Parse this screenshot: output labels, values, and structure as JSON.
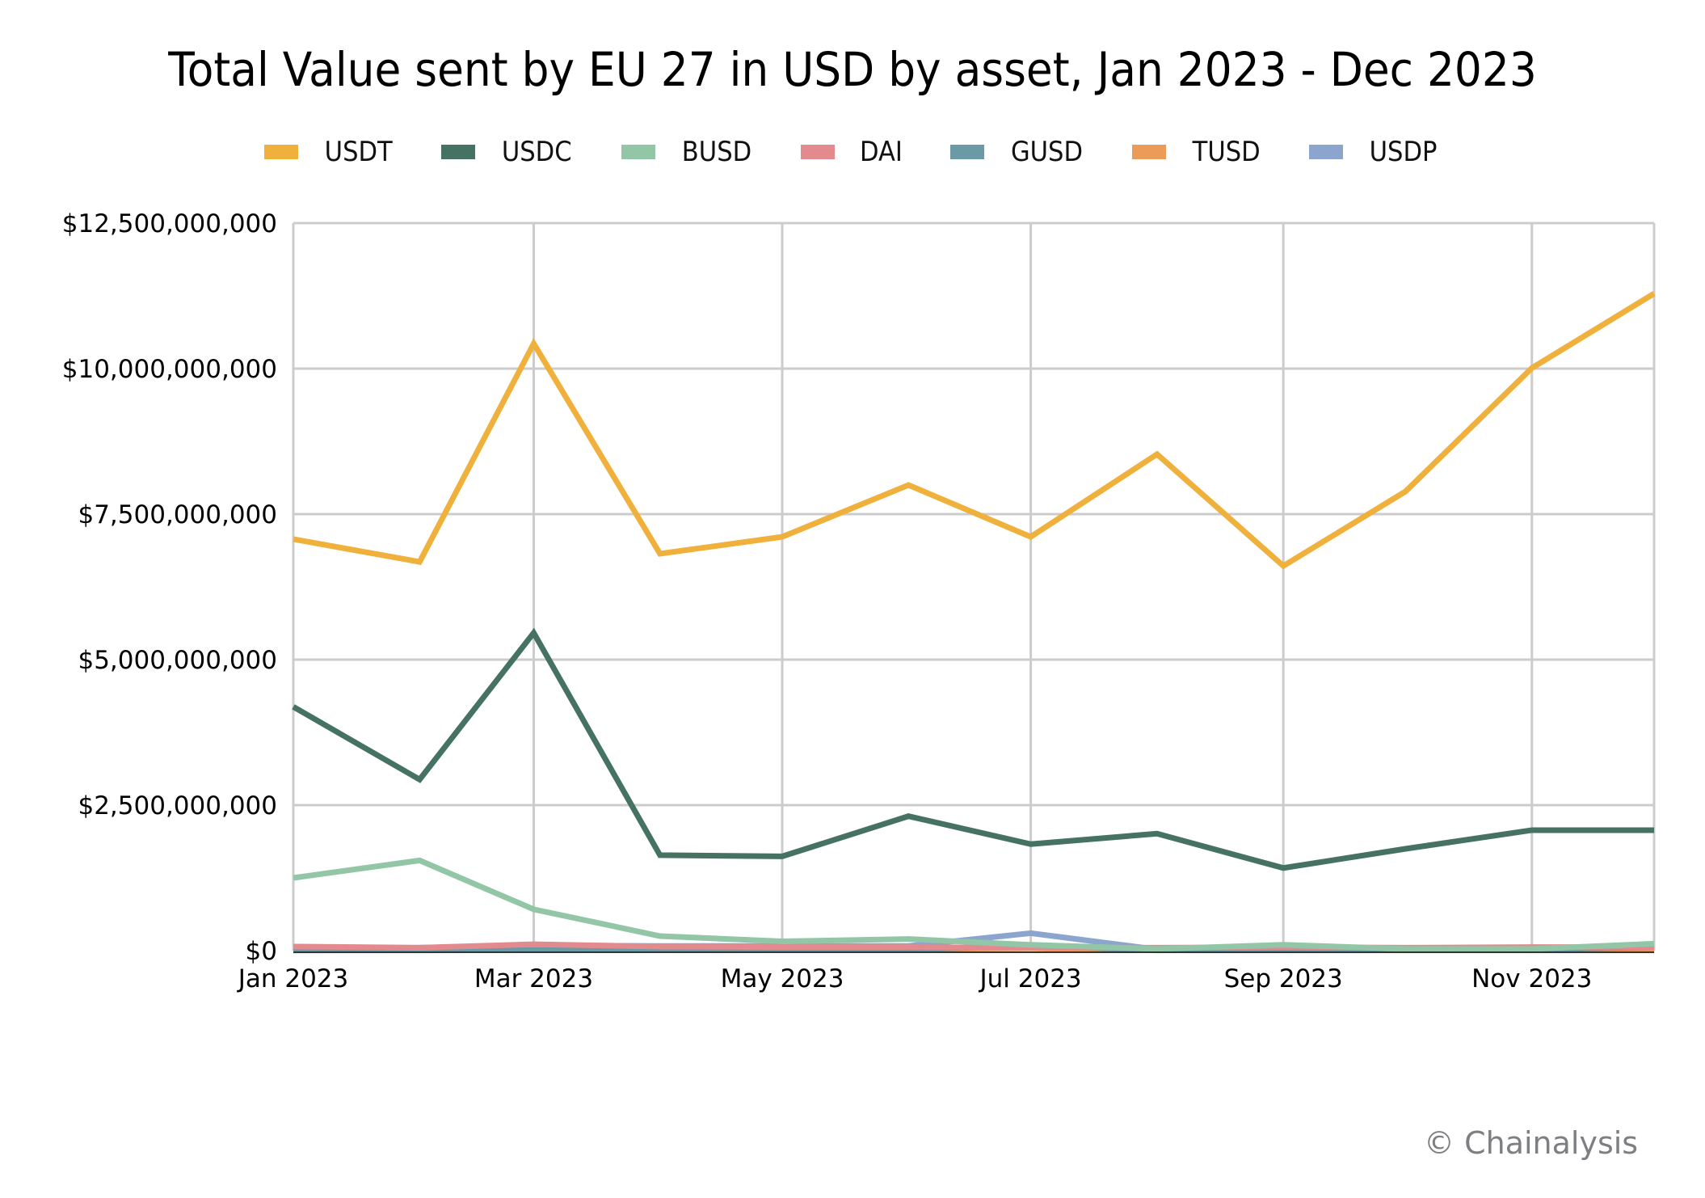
{
  "chart_data": {
    "type": "line",
    "title": "Total Value sent by EU 27 in USD by asset, Jan 2023 - Dec 2023",
    "xlabel": "",
    "ylabel": "",
    "x": [
      "Jan 2023",
      "Feb 2023",
      "Mar 2023",
      "Apr 2023",
      "May 2023",
      "Jun 2023",
      "Jul 2023",
      "Aug 2023",
      "Sep 2023",
      "Oct 2023",
      "Nov 2023",
      "Dec 2023"
    ],
    "x_day_offsets": [
      0,
      31,
      59,
      90,
      120,
      151,
      181,
      212,
      243,
      273,
      304,
      334
    ],
    "x_tick_labels": [
      "Jan 2023",
      "Mar 2023",
      "May 2023",
      "Jul 2023",
      "Sep 2023",
      "Nov 2023"
    ],
    "x_tick_day_offsets": [
      0,
      59,
      120,
      181,
      243,
      304
    ],
    "ylim": [
      0,
      12500000000
    ],
    "y_ticks": [
      0,
      2500000000,
      5000000000,
      7500000000,
      10000000000,
      12500000000
    ],
    "y_tick_labels": [
      "$0",
      "$2,500,000,000",
      "$5,000,000,000",
      "$7,500,000,000",
      "$10,000,000,000",
      "$12,500,000,000"
    ],
    "grid": true,
    "legend_position": "top-center",
    "series": [
      {
        "name": "USDT",
        "color": "#F0B03C",
        "values": [
          7070000000,
          6680000000,
          10430000000,
          6820000000,
          7110000000,
          8000000000,
          7110000000,
          8530000000,
          6610000000,
          7890000000,
          10010000000,
          11290000000
        ]
      },
      {
        "name": "USDC",
        "color": "#467263",
        "values": [
          4190000000,
          2940000000,
          5460000000,
          1640000000,
          1620000000,
          2310000000,
          1830000000,
          2010000000,
          1420000000,
          1750000000,
          2070000000,
          2070000000
        ]
      },
      {
        "name": "BUSD",
        "color": "#93C6A6",
        "values": [
          1250000000,
          1550000000,
          710000000,
          250000000,
          160000000,
          200000000,
          100000000,
          30000000,
          100000000,
          30000000,
          30000000,
          120000000
        ]
      },
      {
        "name": "DAI",
        "color": "#E38A8E",
        "values": [
          70000000,
          50000000,
          110000000,
          70000000,
          60000000,
          60000000,
          50000000,
          50000000,
          60000000,
          50000000,
          60000000,
          60000000
        ]
      },
      {
        "name": "GUSD",
        "color": "#6A9AA6",
        "values": [
          5000000,
          5000000,
          10000000,
          10000000,
          10000000,
          20000000,
          80000000,
          10000000,
          20000000,
          40000000,
          20000000,
          60000000
        ]
      },
      {
        "name": "TUSD",
        "color": "#EC9C58",
        "values": [
          5000000,
          10000000,
          40000000,
          30000000,
          30000000,
          30000000,
          40000000,
          5000000,
          5000000,
          5000000,
          5000000,
          5000000
        ]
      },
      {
        "name": "USDP",
        "color": "#8BA5CF",
        "values": [
          30000000,
          50000000,
          90000000,
          80000000,
          80000000,
          80000000,
          300000000,
          20000000,
          20000000,
          20000000,
          20000000,
          40000000
        ]
      }
    ]
  },
  "credit": "© Chainalysis"
}
